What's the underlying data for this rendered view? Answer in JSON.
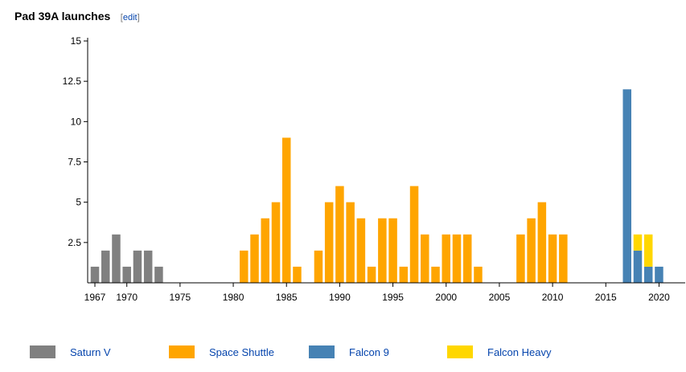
{
  "header": {
    "title": "Pad 39A launches",
    "edit_open": "[",
    "edit_label": "edit",
    "edit_close": "]"
  },
  "chart_data": {
    "type": "bar",
    "stacked": true,
    "title": "Pad 39A launches",
    "xlabel": "",
    "ylabel": "",
    "ylim": [
      0,
      15
    ],
    "yticks": [
      "2.5",
      "5",
      "7.5",
      "10",
      "12.5",
      "15"
    ],
    "xticks": [
      "1967",
      "1970",
      "1975",
      "1980",
      "1985",
      "1990",
      "1995",
      "2000",
      "2005",
      "2010",
      "2015",
      "2020"
    ],
    "grid": false,
    "legend_position": "bottom",
    "categories": [
      1967,
      1968,
      1969,
      1970,
      1971,
      1972,
      1973,
      1974,
      1975,
      1976,
      1977,
      1978,
      1979,
      1980,
      1981,
      1982,
      1983,
      1984,
      1985,
      1986,
      1987,
      1988,
      1989,
      1990,
      1991,
      1992,
      1993,
      1994,
      1995,
      1996,
      1997,
      1998,
      1999,
      2000,
      2001,
      2002,
      2003,
      2004,
      2005,
      2006,
      2007,
      2008,
      2009,
      2010,
      2011,
      2012,
      2013,
      2014,
      2015,
      2016,
      2017,
      2018,
      2019,
      2020
    ],
    "series": [
      {
        "name": "Saturn V",
        "color": "#808080",
        "values": [
          1,
          2,
          3,
          1,
          2,
          2,
          1,
          0,
          0,
          0,
          0,
          0,
          0,
          0,
          0,
          0,
          0,
          0,
          0,
          0,
          0,
          0,
          0,
          0,
          0,
          0,
          0,
          0,
          0,
          0,
          0,
          0,
          0,
          0,
          0,
          0,
          0,
          0,
          0,
          0,
          0,
          0,
          0,
          0,
          0,
          0,
          0,
          0,
          0,
          0,
          0,
          0,
          0,
          0
        ]
      },
      {
        "name": "Space Shuttle",
        "color": "#ffa500",
        "values": [
          0,
          0,
          0,
          0,
          0,
          0,
          0,
          0,
          0,
          0,
          0,
          0,
          0,
          0,
          2,
          3,
          4,
          5,
          9,
          1,
          0,
          2,
          5,
          6,
          5,
          4,
          1,
          4,
          4,
          1,
          6,
          3,
          1,
          3,
          3,
          3,
          1,
          0,
          0,
          0,
          3,
          4,
          5,
          3,
          3,
          0,
          0,
          0,
          0,
          0,
          0,
          0,
          0,
          0
        ]
      },
      {
        "name": "Falcon 9",
        "color": "#4682b4",
        "values": [
          0,
          0,
          0,
          0,
          0,
          0,
          0,
          0,
          0,
          0,
          0,
          0,
          0,
          0,
          0,
          0,
          0,
          0,
          0,
          0,
          0,
          0,
          0,
          0,
          0,
          0,
          0,
          0,
          0,
          0,
          0,
          0,
          0,
          0,
          0,
          0,
          0,
          0,
          0,
          0,
          0,
          0,
          0,
          0,
          0,
          0,
          0,
          0,
          0,
          0,
          12,
          2,
          1,
          1
        ]
      },
      {
        "name": "Falcon Heavy",
        "color": "#ffd700",
        "values": [
          0,
          0,
          0,
          0,
          0,
          0,
          0,
          0,
          0,
          0,
          0,
          0,
          0,
          0,
          0,
          0,
          0,
          0,
          0,
          0,
          0,
          0,
          0,
          0,
          0,
          0,
          0,
          0,
          0,
          0,
          0,
          0,
          0,
          0,
          0,
          0,
          0,
          0,
          0,
          0,
          0,
          0,
          0,
          0,
          0,
          0,
          0,
          0,
          0,
          0,
          0,
          1,
          2,
          0
        ]
      }
    ]
  }
}
